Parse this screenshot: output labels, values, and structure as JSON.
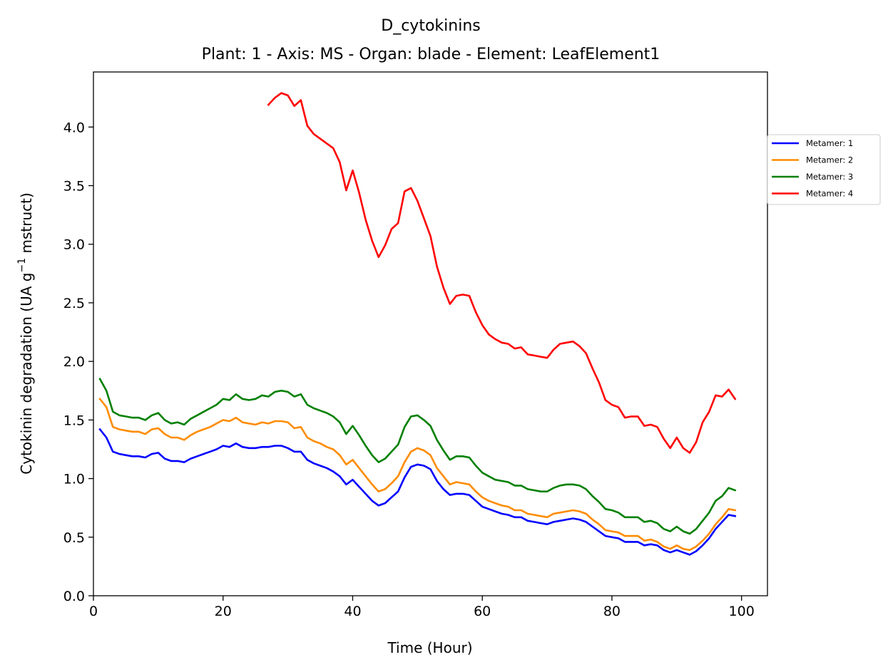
{
  "chart_data": {
    "type": "line",
    "title": "D_cytokinins",
    "subtitle": "Plant: 1 - Axis: MS - Organ: blade - Element: LeafElement1",
    "xlabel": "Time (Hour)",
    "ylabel_main": "Cytokinin degradation (UA g",
    "ylabel_sup": "−1",
    "ylabel_end": " mstruct)",
    "xlim": [
      0,
      104
    ],
    "ylim": [
      0,
      4.47
    ],
    "xticks": [
      0,
      20,
      40,
      60,
      80,
      100
    ],
    "yticks": [
      0.0,
      0.5,
      1.0,
      1.5,
      2.0,
      2.5,
      3.0,
      3.5,
      4.0
    ],
    "grid": false,
    "legend_position": "outside-right-top",
    "series": [
      {
        "name": "Metamer: 1",
        "color": "#0000ff",
        "x_start": 1,
        "values": [
          1.42,
          1.35,
          1.23,
          1.21,
          1.2,
          1.19,
          1.19,
          1.18,
          1.21,
          1.22,
          1.17,
          1.15,
          1.15,
          1.14,
          1.17,
          1.19,
          1.21,
          1.23,
          1.25,
          1.28,
          1.27,
          1.3,
          1.27,
          1.26,
          1.26,
          1.27,
          1.27,
          1.28,
          1.28,
          1.26,
          1.23,
          1.23,
          1.16,
          1.13,
          1.11,
          1.09,
          1.06,
          1.02,
          0.95,
          0.99,
          0.93,
          0.87,
          0.81,
          0.77,
          0.79,
          0.84,
          0.89,
          1.01,
          1.1,
          1.12,
          1.11,
          1.08,
          0.98,
          0.91,
          0.86,
          0.87,
          0.87,
          0.86,
          0.81,
          0.76,
          0.74,
          0.72,
          0.7,
          0.69,
          0.67,
          0.67,
          0.64,
          0.63,
          0.62,
          0.61,
          0.63,
          0.64,
          0.65,
          0.66,
          0.65,
          0.63,
          0.59,
          0.55,
          0.51,
          0.5,
          0.49,
          0.46,
          0.46,
          0.46,
          0.43,
          0.44,
          0.43,
          0.39,
          0.37,
          0.39,
          0.37,
          0.35,
          0.38,
          0.43,
          0.49,
          0.57,
          0.63,
          0.69,
          0.68
        ]
      },
      {
        "name": "Metamer: 2",
        "color": "#ff8c00",
        "x_start": 1,
        "values": [
          1.68,
          1.61,
          1.44,
          1.42,
          1.41,
          1.4,
          1.4,
          1.38,
          1.42,
          1.43,
          1.38,
          1.35,
          1.35,
          1.33,
          1.37,
          1.4,
          1.42,
          1.44,
          1.47,
          1.5,
          1.49,
          1.52,
          1.48,
          1.47,
          1.46,
          1.48,
          1.47,
          1.49,
          1.49,
          1.48,
          1.43,
          1.44,
          1.35,
          1.32,
          1.3,
          1.27,
          1.25,
          1.2,
          1.12,
          1.16,
          1.09,
          1.02,
          0.95,
          0.89,
          0.91,
          0.96,
          1.02,
          1.14,
          1.23,
          1.26,
          1.24,
          1.2,
          1.09,
          1.02,
          0.95,
          0.97,
          0.96,
          0.95,
          0.89,
          0.84,
          0.81,
          0.79,
          0.77,
          0.76,
          0.73,
          0.73,
          0.7,
          0.69,
          0.68,
          0.67,
          0.7,
          0.71,
          0.72,
          0.73,
          0.72,
          0.7,
          0.65,
          0.61,
          0.56,
          0.55,
          0.54,
          0.51,
          0.51,
          0.51,
          0.47,
          0.48,
          0.46,
          0.42,
          0.4,
          0.43,
          0.4,
          0.39,
          0.42,
          0.47,
          0.53,
          0.61,
          0.67,
          0.74,
          0.73
        ]
      },
      {
        "name": "Metamer: 3",
        "color": "#008000",
        "x_start": 1,
        "values": [
          1.85,
          1.75,
          1.57,
          1.54,
          1.53,
          1.52,
          1.52,
          1.5,
          1.54,
          1.56,
          1.5,
          1.47,
          1.48,
          1.46,
          1.51,
          1.54,
          1.57,
          1.6,
          1.63,
          1.68,
          1.67,
          1.72,
          1.68,
          1.67,
          1.68,
          1.71,
          1.7,
          1.74,
          1.75,
          1.74,
          1.7,
          1.72,
          1.63,
          1.6,
          1.58,
          1.56,
          1.53,
          1.48,
          1.38,
          1.45,
          1.37,
          1.28,
          1.2,
          1.14,
          1.17,
          1.23,
          1.29,
          1.44,
          1.53,
          1.54,
          1.5,
          1.45,
          1.33,
          1.24,
          1.16,
          1.19,
          1.19,
          1.18,
          1.11,
          1.05,
          1.02,
          0.99,
          0.98,
          0.97,
          0.94,
          0.94,
          0.91,
          0.9,
          0.89,
          0.89,
          0.92,
          0.94,
          0.95,
          0.95,
          0.94,
          0.91,
          0.85,
          0.8,
          0.74,
          0.73,
          0.71,
          0.67,
          0.67,
          0.67,
          0.63,
          0.64,
          0.62,
          0.57,
          0.55,
          0.59,
          0.55,
          0.53,
          0.57,
          0.64,
          0.71,
          0.81,
          0.85,
          0.92,
          0.9
        ]
      },
      {
        "name": "Metamer: 4",
        "color": "#ff0000",
        "x_start": 27,
        "values": [
          4.19,
          4.25,
          4.29,
          4.27,
          4.18,
          4.23,
          4.01,
          3.94,
          3.9,
          3.86,
          3.82,
          3.7,
          3.46,
          3.63,
          3.44,
          3.21,
          3.03,
          2.89,
          2.99,
          3.13,
          3.18,
          3.45,
          3.48,
          3.37,
          3.22,
          3.07,
          2.81,
          2.63,
          2.49,
          2.56,
          2.57,
          2.56,
          2.42,
          2.31,
          2.23,
          2.19,
          2.16,
          2.15,
          2.11,
          2.12,
          2.06,
          2.05,
          2.04,
          2.03,
          2.1,
          2.15,
          2.16,
          2.17,
          2.13,
          2.07,
          1.94,
          1.82,
          1.67,
          1.63,
          1.61,
          1.52,
          1.53,
          1.53,
          1.45,
          1.46,
          1.44,
          1.34,
          1.26,
          1.35,
          1.26,
          1.22,
          1.31,
          1.48,
          1.57,
          1.71,
          1.7,
          1.76,
          1.68
        ]
      }
    ]
  }
}
